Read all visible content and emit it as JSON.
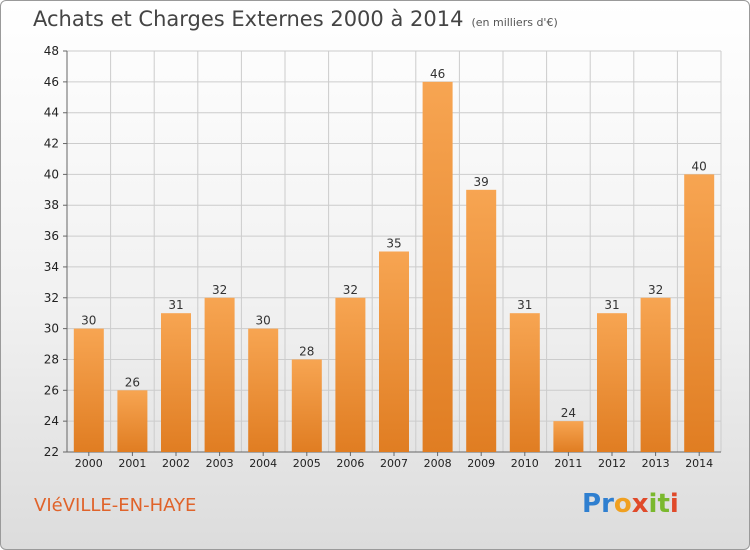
{
  "header": {
    "title": "Achats et Charges Externes 2000 à 2014",
    "unit": "(en milliers d'€)"
  },
  "footer": {
    "commune": "VIéVILLE-EN-HAYE",
    "logo_letters": [
      {
        "ch": "P",
        "color": "#2f7fd0"
      },
      {
        "ch": "r",
        "color": "#2f7fd0"
      },
      {
        "ch": "o",
        "color": "#f0a020"
      },
      {
        "ch": "x",
        "color": "#e04a2a"
      },
      {
        "ch": "i",
        "color": "#7ab82e"
      },
      {
        "ch": "t",
        "color": "#7ab82e"
      },
      {
        "ch": "i",
        "color": "#e04a2a"
      }
    ]
  },
  "colors": {
    "bar_top": "#f7a552",
    "bar_bottom": "#e07d22",
    "grid": "#cccccc",
    "axis_text": "#222222"
  },
  "chart_data": {
    "type": "bar",
    "title": "Achats et Charges Externes 2000 à 2014",
    "xlabel": "",
    "ylabel": "",
    "categories": [
      "2000",
      "2001",
      "2002",
      "2003",
      "2004",
      "2005",
      "2006",
      "2007",
      "2008",
      "2009",
      "2010",
      "2011",
      "2012",
      "2013",
      "2014"
    ],
    "values": [
      30,
      26,
      31,
      32,
      30,
      28,
      32,
      35,
      46,
      39,
      31,
      24,
      31,
      32,
      40
    ],
    "ylim": [
      22,
      48
    ],
    "yticks": [
      22,
      24,
      26,
      28,
      30,
      32,
      34,
      36,
      38,
      40,
      42,
      44,
      46,
      48
    ],
    "grid": true,
    "data_labels": true
  }
}
